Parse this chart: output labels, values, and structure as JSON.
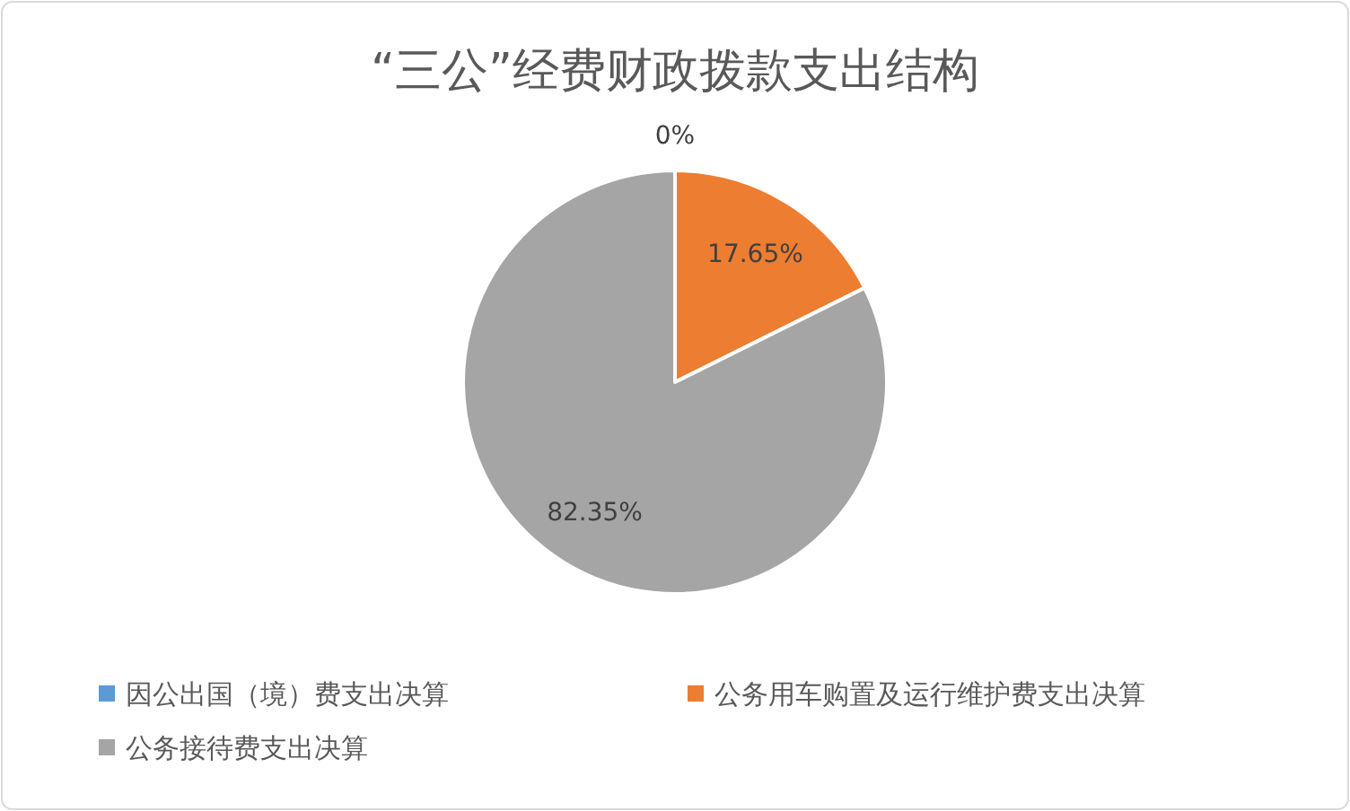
{
  "chart_data": {
    "type": "pie",
    "title": "“三公”经费财政拨款支出结构",
    "categories": [
      "因公出国（境）费支出决算",
      "公务用车购置及运行维护费支出决算",
      "公务接待费支出决算"
    ],
    "values": [
      0,
      17.65,
      82.35
    ],
    "colors": [
      "#5b9bd5",
      "#ed7d31",
      "#a5a5a5"
    ],
    "value_labels": [
      "0%",
      "17.65%",
      "82.35%"
    ],
    "legend": "bottom"
  }
}
